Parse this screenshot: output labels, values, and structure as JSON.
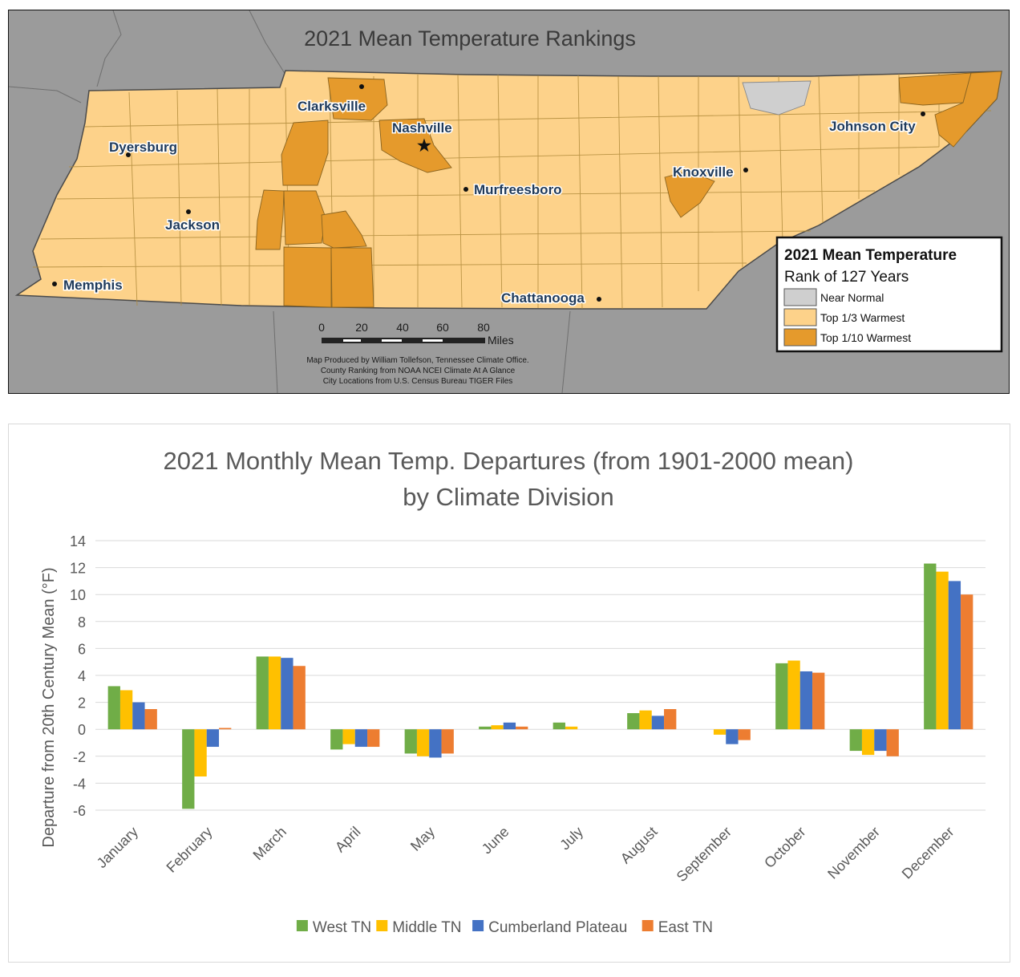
{
  "map": {
    "title": "2021 Mean Temperature Rankings",
    "cities": [
      {
        "name": "Clarksville",
        "id": "clarksville"
      },
      {
        "name": "Nashville",
        "id": "nashville"
      },
      {
        "name": "Dyersburg",
        "id": "dyersburg"
      },
      {
        "name": "Jackson",
        "id": "jackson"
      },
      {
        "name": "Murfreesboro",
        "id": "murfreesboro"
      },
      {
        "name": "Knoxville",
        "id": "knoxville"
      },
      {
        "name": "Johnson City",
        "id": "johnson-city"
      },
      {
        "name": "Memphis",
        "id": "memphis"
      },
      {
        "name": "Chattanooga",
        "id": "chattanooga"
      }
    ],
    "legend": {
      "title": "2021 Mean Temperature",
      "subtitle": "Rank of 127 Years",
      "items": [
        {
          "label": "Near Normal",
          "color": "#cfcfcf"
        },
        {
          "label": "Top 1/3 Warmest",
          "color": "#fdd28a"
        },
        {
          "label": "Top 1/10 Warmest",
          "color": "#e59a2c"
        }
      ]
    },
    "scale_bar": {
      "ticks": [
        "0",
        "20",
        "40",
        "60",
        "80"
      ],
      "unit": "Miles"
    },
    "credits": [
      "Map Produced by William Tollefson, Tennessee Climate Office.",
      "County Ranking from NOAA NCEI Climate At A Glance",
      "City Locations from U.S. Census Bureau TIGER Files"
    ],
    "colors": {
      "background": "#9b9b9b",
      "state_fill": "#fdd28a",
      "warm10": "#e59a2c",
      "normal": "#cfcfcf",
      "county_line": "#b08a3a"
    }
  },
  "chart_data": {
    "type": "bar",
    "title_lines": [
      "2021 Monthly Mean Temp. Departures (from 1901-2000 mean)",
      "by Climate Division"
    ],
    "ylabel": "Departure from 20th Century Mean (°F)",
    "xlabel": "",
    "ylim": [
      -6,
      14
    ],
    "yticks": [
      -6,
      -4,
      -2,
      0,
      2,
      4,
      6,
      8,
      10,
      12,
      14
    ],
    "grid": true,
    "legend_position": "bottom",
    "categories": [
      "January",
      "February",
      "March",
      "April",
      "May",
      "June",
      "July",
      "August",
      "September",
      "October",
      "November",
      "December"
    ],
    "series": [
      {
        "name": "West TN",
        "color": "#70ad47",
        "values": [
          3.2,
          -5.9,
          5.4,
          -1.5,
          -1.8,
          0.2,
          0.5,
          1.2,
          0.0,
          4.9,
          -1.6,
          12.3
        ]
      },
      {
        "name": "Middle TN",
        "color": "#ffc000",
        "values": [
          2.9,
          -3.5,
          5.4,
          -1.1,
          -2.0,
          0.3,
          0.2,
          1.4,
          -0.4,
          5.1,
          -1.9,
          11.7
        ]
      },
      {
        "name": "Cumberland Plateau",
        "color": "#4472c4",
        "values": [
          2.0,
          -1.3,
          5.3,
          -1.3,
          -2.1,
          0.5,
          0.0,
          1.0,
          -1.1,
          4.3,
          -1.6,
          11.0
        ]
      },
      {
        "name": "East TN",
        "color": "#ed7d31",
        "values": [
          1.5,
          0.1,
          4.7,
          -1.3,
          -1.8,
          0.2,
          0.0,
          1.5,
          -0.8,
          4.2,
          -2.0,
          10.0
        ]
      }
    ]
  }
}
